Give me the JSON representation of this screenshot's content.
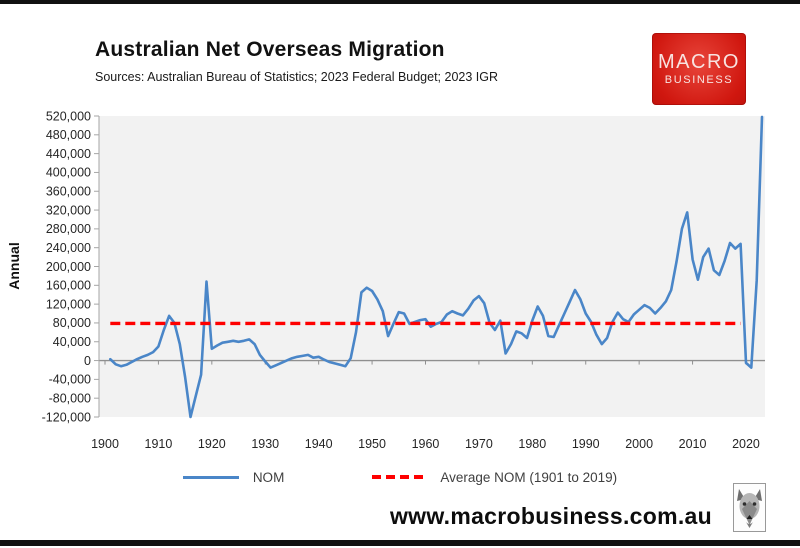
{
  "header": {
    "title": "Australian Net Overseas Migration",
    "subtitle": "Sources: Australian Bureau of Statistics; 2023 Federal Budget; 2023 IGR",
    "logo": {
      "line1": "MACRO",
      "line2": "BUSINESS"
    }
  },
  "footer": {
    "website": "www.macrobusiness.com.au"
  },
  "legend": {
    "nom_label": "NOM",
    "avg_label": "Average NOM (1901 to 2019)"
  },
  "colors": {
    "nom_line": "#4a86c8",
    "average_line": "#fe0000",
    "plot_background": "#f2f2f2",
    "axis": "#a6a6a6",
    "zero_line": "#8f8f8f",
    "tick_text": "#262626",
    "logo_red": "#d0170f"
  },
  "chart_data": {
    "type": "line",
    "title": "Australian Net Overseas Migration",
    "xlabel": "",
    "ylabel": "Annual",
    "ylim": [
      -120000,
      520000
    ],
    "xlim": [
      1900,
      2023
    ],
    "grid": false,
    "legend_position": "bottom",
    "ytick_values": [
      520000,
      480000,
      440000,
      400000,
      360000,
      320000,
      280000,
      240000,
      200000,
      160000,
      120000,
      80000,
      40000,
      0,
      -40000,
      -80000,
      -120000
    ],
    "ytick_labels": [
      "520,000",
      "480,000",
      "440,000",
      "400,000",
      "360,000",
      "320,000",
      "280,000",
      "240,000",
      "200,000",
      "160,000",
      "120,000",
      "80,000",
      "40,000",
      "0",
      "-40,000",
      "-80,000",
      "-120,000"
    ],
    "xticks": [
      1900,
      1910,
      1920,
      1930,
      1940,
      1950,
      1960,
      1970,
      1980,
      1990,
      2000,
      2010,
      2020
    ],
    "series": [
      {
        "name": "NOM",
        "style": "solid",
        "color": "#4a86c8",
        "x": [
          1901,
          1902,
          1903,
          1904,
          1905,
          1906,
          1907,
          1908,
          1909,
          1910,
          1911,
          1912,
          1913,
          1914,
          1915,
          1916,
          1917,
          1918,
          1919,
          1920,
          1921,
          1922,
          1923,
          1924,
          1925,
          1926,
          1927,
          1928,
          1929,
          1930,
          1931,
          1932,
          1933,
          1934,
          1935,
          1936,
          1937,
          1938,
          1939,
          1940,
          1941,
          1942,
          1943,
          1944,
          1945,
          1946,
          1947,
          1948,
          1949,
          1950,
          1951,
          1952,
          1953,
          1954,
          1955,
          1956,
          1957,
          1958,
          1959,
          1960,
          1961,
          1962,
          1963,
          1964,
          1965,
          1966,
          1967,
          1968,
          1969,
          1970,
          1971,
          1972,
          1973,
          1974,
          1975,
          1976,
          1977,
          1978,
          1979,
          1980,
          1981,
          1982,
          1983,
          1984,
          1985,
          1986,
          1987,
          1988,
          1989,
          1990,
          1991,
          1992,
          1993,
          1994,
          1995,
          1996,
          1997,
          1998,
          1999,
          2000,
          2001,
          2002,
          2003,
          2004,
          2005,
          2006,
          2007,
          2008,
          2009,
          2010,
          2011,
          2012,
          2013,
          2014,
          2015,
          2016,
          2017,
          2018,
          2019,
          2020,
          2021,
          2022,
          2023
        ],
        "values": [
          3000,
          -8000,
          -12000,
          -9000,
          -3000,
          3000,
          8000,
          12000,
          18000,
          30000,
          65000,
          95000,
          80000,
          35000,
          -35000,
          -120000,
          -75000,
          -30000,
          168000,
          25000,
          32000,
          38000,
          40000,
          42000,
          40000,
          42000,
          45000,
          35000,
          12000,
          -2000,
          -15000,
          -10000,
          -5000,
          0,
          5000,
          8000,
          10000,
          12000,
          6000,
          8000,
          2000,
          -3000,
          -6000,
          -9000,
          -12000,
          5000,
          60000,
          145000,
          155000,
          148000,
          130000,
          105000,
          52000,
          78000,
          103000,
          100000,
          78000,
          82000,
          86000,
          88000,
          72000,
          78000,
          82000,
          98000,
          105000,
          100000,
          96000,
          110000,
          128000,
          137000,
          122000,
          80000,
          65000,
          85000,
          15000,
          35000,
          62000,
          58000,
          48000,
          85000,
          115000,
          95000,
          52000,
          50000,
          75000,
          100000,
          125000,
          150000,
          130000,
          100000,
          82000,
          55000,
          35000,
          48000,
          82000,
          102000,
          88000,
          82000,
          98000,
          108000,
          118000,
          112000,
          100000,
          112000,
          126000,
          150000,
          210000,
          280000,
          315000,
          215000,
          172000,
          220000,
          238000,
          192000,
          182000,
          212000,
          250000,
          238000,
          248000,
          -5000,
          -15000,
          170000,
          518000
        ]
      },
      {
        "name": "Average NOM (1901 to 2019)",
        "style": "dashed",
        "color": "#fe0000",
        "x": [
          1901,
          2019
        ],
        "values": [
          79000,
          79000
        ]
      }
    ]
  }
}
